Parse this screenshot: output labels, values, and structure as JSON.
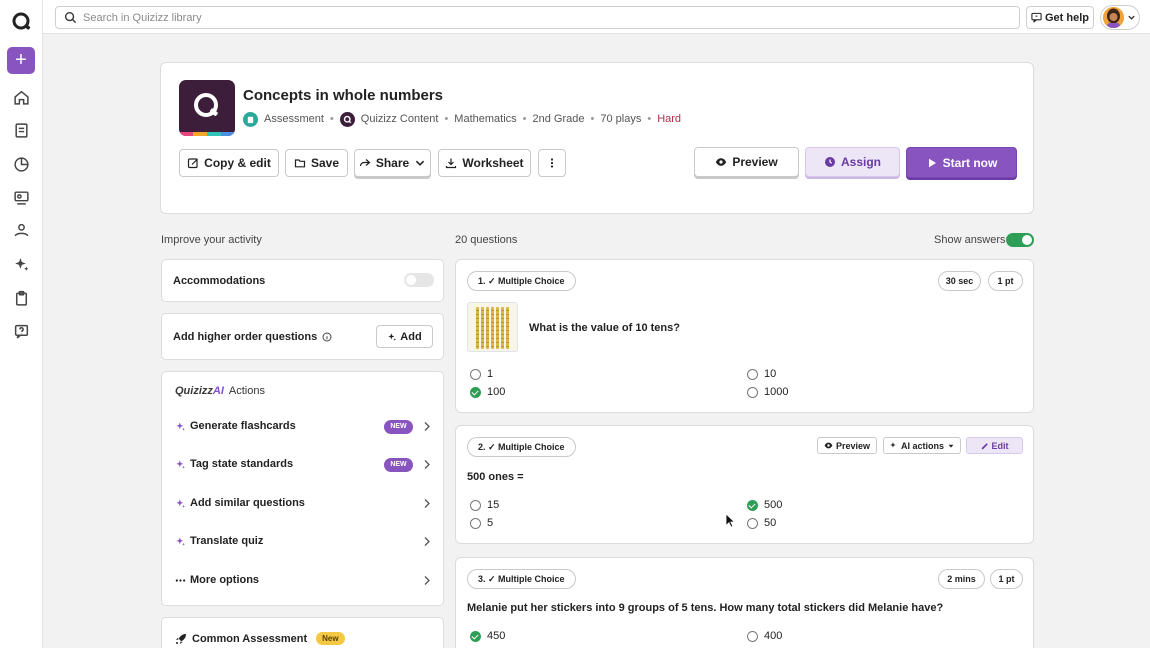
{
  "search": {
    "placeholder": "Search in Quizizz library"
  },
  "topbar": {
    "help_label": "Get help"
  },
  "rail": {
    "icons": [
      "home-icon",
      "library-icon",
      "reports-icon",
      "classes-icon",
      "accommodations-icon",
      "ai-icon",
      "assessment-icon",
      "help-icon"
    ]
  },
  "quiz": {
    "title": "Concepts in whole numbers",
    "meta": {
      "type": "Assessment",
      "source": "Quizizz Content",
      "subject": "Mathematics",
      "grade": "2nd Grade",
      "plays": "70 plays",
      "difficulty": "Hard"
    }
  },
  "toolbar": {
    "copy_edit": "Copy & edit",
    "save": "Save",
    "share": "Share",
    "worksheet": "Worksheet",
    "preview": "Preview",
    "assign": "Assign",
    "start": "Start now"
  },
  "improve": {
    "heading": "Improve your activity",
    "accommodations": "Accommodations",
    "higher_order": "Add higher order questions",
    "add": "Add",
    "ai_brand_prefix": "Quizizz",
    "ai_brand_suffix": "AI",
    "ai_actions": "Actions",
    "actions": [
      {
        "label": "Generate flashcards",
        "badge": "NEW"
      },
      {
        "label": "Tag state standards",
        "badge": "NEW"
      },
      {
        "label": "Add similar questions",
        "badge": ""
      },
      {
        "label": "Translate quiz",
        "badge": ""
      },
      {
        "label": "More options",
        "badge": ""
      }
    ],
    "common_assessment": "Common Assessment",
    "common_badge": "New"
  },
  "questions": {
    "count": "20 questions",
    "show_answers": "Show answers",
    "items": [
      {
        "type": "1. ✓ Multiple Choice",
        "time": "30 sec",
        "points": "1 pt",
        "text": "What is the value of 10 tens?",
        "options": [
          {
            "label": "1",
            "correct": false
          },
          {
            "label": "10",
            "correct": false
          },
          {
            "label": "100",
            "correct": true
          },
          {
            "label": "1000",
            "correct": false
          }
        ]
      },
      {
        "type": "2. ✓ Multiple Choice",
        "preview": "Preview",
        "ai_actions": "AI actions",
        "edit": "Edit",
        "text": "500 ones =",
        "options": [
          {
            "label": "15",
            "correct": false
          },
          {
            "label": "500",
            "correct": true
          },
          {
            "label": "5",
            "correct": false
          },
          {
            "label": "50",
            "correct": false
          }
        ]
      },
      {
        "type": "3. ✓ Multiple Choice",
        "time": "2 mins",
        "points": "1 pt",
        "text": "Melanie put her stickers into 9 groups of 5 tens. How many total stickers did Melanie have?",
        "options": [
          {
            "label": "450",
            "correct": true
          },
          {
            "label": "400",
            "correct": false
          }
        ]
      }
    ]
  },
  "colors": {
    "brand": "#8854c0",
    "correct": "#2e9d55",
    "hard": "#b32d4d"
  }
}
